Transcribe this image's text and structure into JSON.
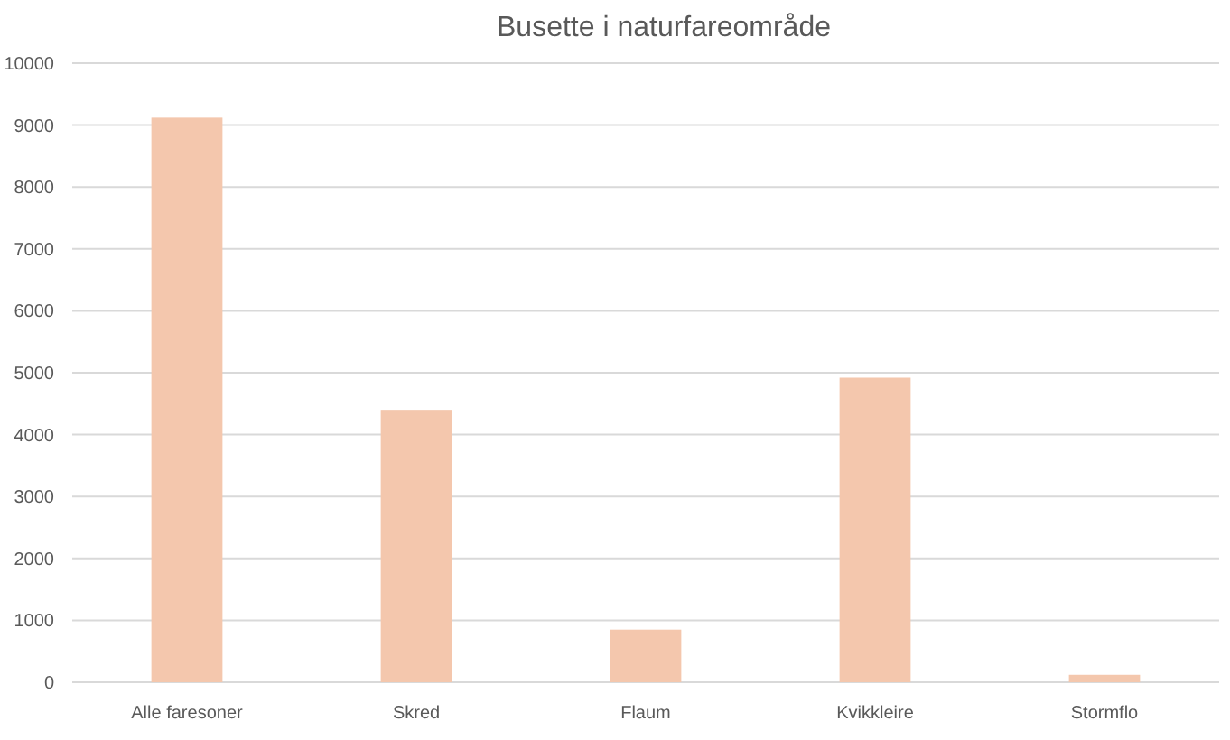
{
  "chart_data": {
    "type": "bar",
    "title": "Busette i naturfareområde",
    "categories": [
      "Alle faresoner",
      "Skred",
      "Flaum",
      "Kvikkleire",
      "Stormflo"
    ],
    "values": [
      9120,
      4400,
      850,
      4920,
      120
    ],
    "color": "#f4c7ad",
    "ylim": [
      0,
      10000
    ],
    "yticks": [
      0,
      1000,
      2000,
      3000,
      4000,
      5000,
      6000,
      7000,
      8000,
      9000,
      10000
    ],
    "grid": "y"
  }
}
